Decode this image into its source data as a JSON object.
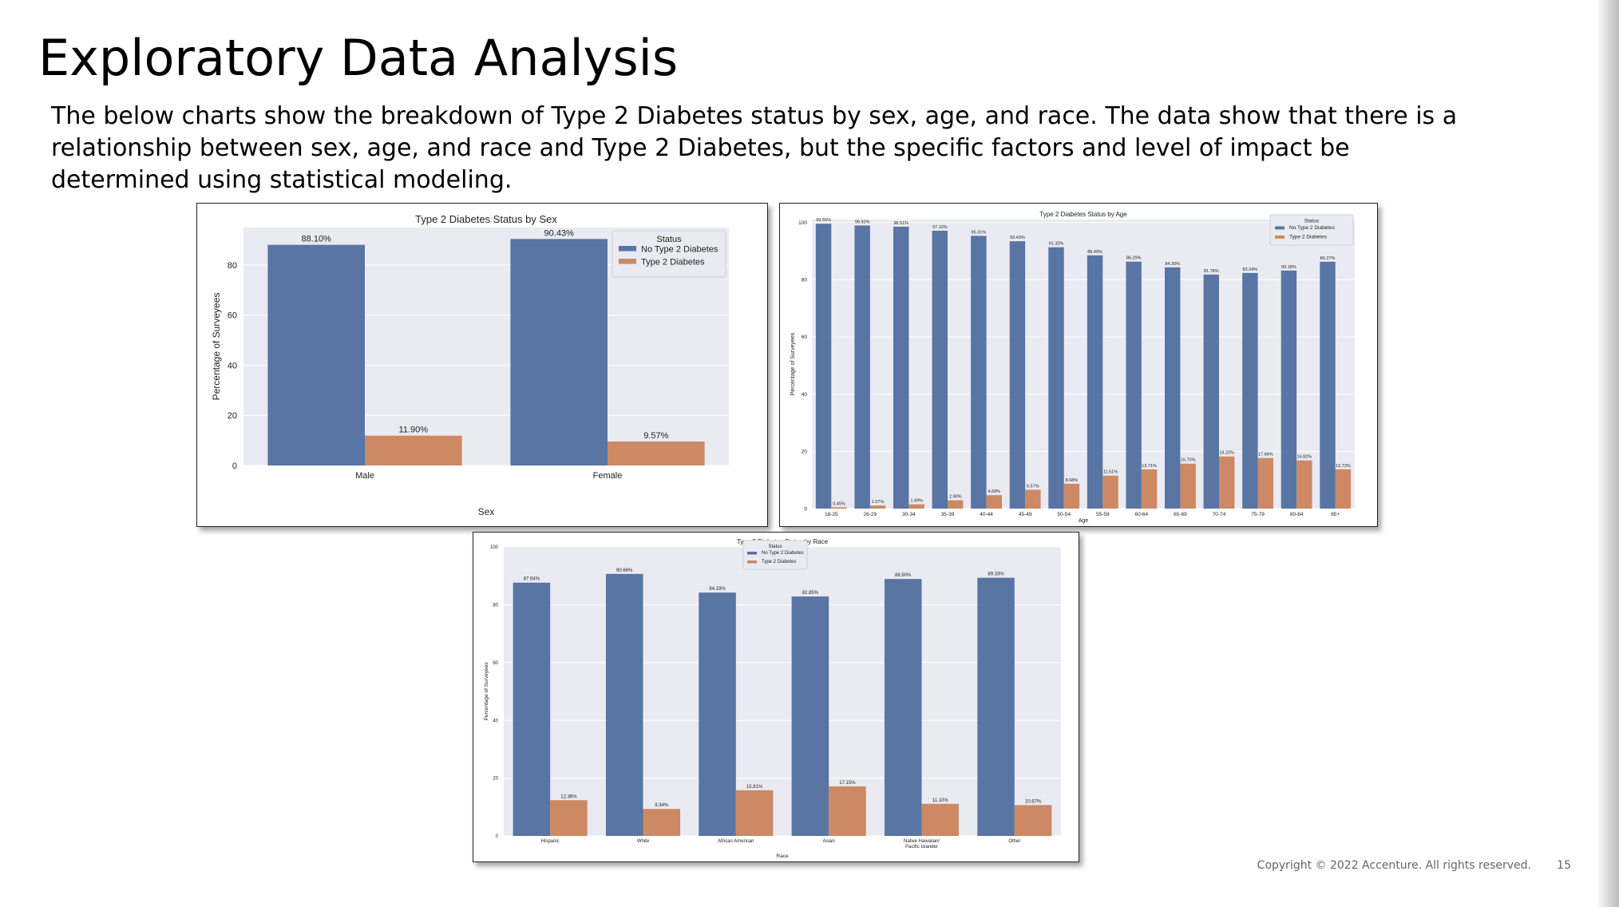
{
  "slide": {
    "title": "Exploratory Data Analysis",
    "body": "The below charts show the breakdown of Type 2 Diabetes status by sex, age, and race. The data show that there is a relationship between sex, age, and race and Type 2 Diabetes, but the specific factors and level of impact be determined using statistical modeling.",
    "copyright": "Copyright © 2022 Accenture. All rights reserved.",
    "page_number": "15"
  },
  "colors": {
    "no_diabetes": "#5875a4",
    "diabetes": "#cc8963",
    "plot_background": "#eaeaf2",
    "gridline": "#ffffff"
  },
  "chart_data": [
    {
      "type": "bar",
      "title": "Type 2 Diabetes Status by Sex",
      "xlabel": "Sex",
      "ylabel": "Percentage of Surveyees",
      "categories": [
        "Male",
        "Female"
      ],
      "series": [
        {
          "name": "No Type 2 Diabetes",
          "values": [
            88.1,
            90.43
          ]
        },
        {
          "name": "Type 2 Diabetes",
          "values": [
            11.9,
            9.57
          ]
        }
      ],
      "data_labels": [
        [
          "88.10%",
          "90.43%"
        ],
        [
          "11.90%",
          "9.57%"
        ]
      ],
      "yticks": [
        0,
        20,
        40,
        60,
        80
      ],
      "ylim": [
        0,
        95
      ],
      "legend_title": "Status",
      "legend_position": "top-right",
      "grid": true
    },
    {
      "type": "bar",
      "title": "Type 2 Diabetes Status by Age",
      "xlabel": "Age",
      "ylabel": "Percentage of Surveyees",
      "categories": [
        "18-25",
        "26-29",
        "30-34",
        "35-39",
        "40-44",
        "45-49",
        "50-54",
        "55-59",
        "60-64",
        "65-69",
        "70-74",
        "75-79",
        "80-84",
        "85+"
      ],
      "series": [
        {
          "name": "No Type 2 Diabetes",
          "values": [
            99.55,
            98.93,
            98.51,
            97.1,
            95.31,
            93.43,
            91.32,
            88.49,
            86.29,
            84.3,
            81.78,
            82.34,
            83.18,
            86.27
          ]
        },
        {
          "name": "Type 2 Diabetes",
          "values": [
            0.45,
            1.07,
            1.49,
            2.9,
            4.69,
            6.57,
            8.68,
            11.51,
            13.71,
            15.7,
            18.22,
            17.66,
            16.82,
            13.73
          ]
        }
      ],
      "data_labels": [
        [
          "99.55%",
          "98.93%",
          "98.51%",
          "97.10%",
          "95.31%",
          "93.43%",
          "91.32%",
          "88.49%",
          "86.29%",
          "84.30%",
          "81.78%",
          "82.34%",
          "83.18%",
          "86.27%"
        ],
        [
          "0.45%",
          "1.07%",
          "1.49%",
          "2.90%",
          "4.69%",
          "6.57%",
          "8.68%",
          "11.51%",
          "13.71%",
          "15.70%",
          "18.22%",
          "17.66%",
          "16.82%",
          "13.73%"
        ]
      ],
      "yticks": [
        0,
        20,
        40,
        60,
        80,
        100
      ],
      "ylim": [
        0,
        101
      ],
      "legend_title": "Status",
      "legend_position": "top-right",
      "grid": true
    },
    {
      "type": "bar",
      "title": "Type 2 Diabetes Status by Race",
      "xlabel": "Race",
      "ylabel": "Percentage of Surveyees",
      "categories": [
        "Hispanic",
        "White",
        "African American",
        "Asian",
        "Native Hawaiian/\nPacific Islander",
        "Other"
      ],
      "series": [
        {
          "name": "No Type 2 Diabetes",
          "values": [
            87.64,
            90.66,
            84.19,
            82.85,
            88.9,
            89.33
          ]
        },
        {
          "name": "Type 2 Diabetes",
          "values": [
            12.36,
            9.34,
            15.81,
            17.15,
            11.1,
            10.67
          ]
        }
      ],
      "data_labels": [
        [
          "87.64%",
          "90.66%",
          "84.19%",
          "82.85%",
          "88.90%",
          "89.33%"
        ],
        [
          "12.36%",
          "9.34%",
          "15.81%",
          "17.15%",
          "11.10%",
          "10.67%"
        ]
      ],
      "yticks": [
        0,
        20,
        40,
        60,
        80,
        100
      ],
      "ylim": [
        0,
        100
      ],
      "legend_title": "Status",
      "legend_position": "top-center",
      "grid": true
    }
  ]
}
